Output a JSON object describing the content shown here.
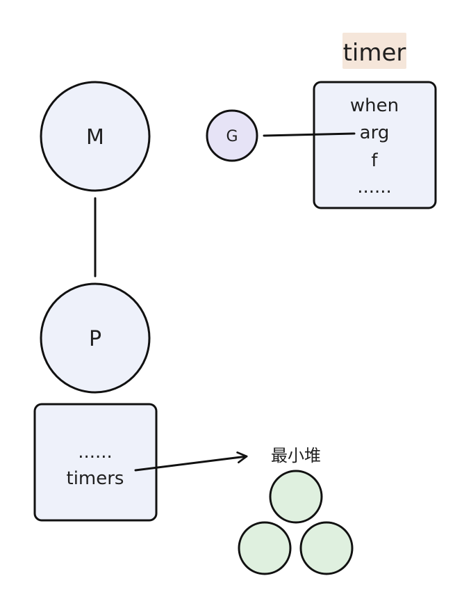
{
  "colors": {
    "node_fill": "#eef1fa",
    "g_fill": "#e6e3f6",
    "heap_fill": "#dff0df",
    "title_bg": "#f5e6da",
    "stroke": "#111111"
  },
  "diagram": {
    "timer_title": "timer",
    "m_label": "M",
    "p_label": "P",
    "g_label": "G",
    "timer_fields": [
      "when",
      "arg",
      "f",
      "......"
    ],
    "p_box_lines": [
      "......",
      "timers"
    ],
    "heap_label": "最小堆"
  }
}
